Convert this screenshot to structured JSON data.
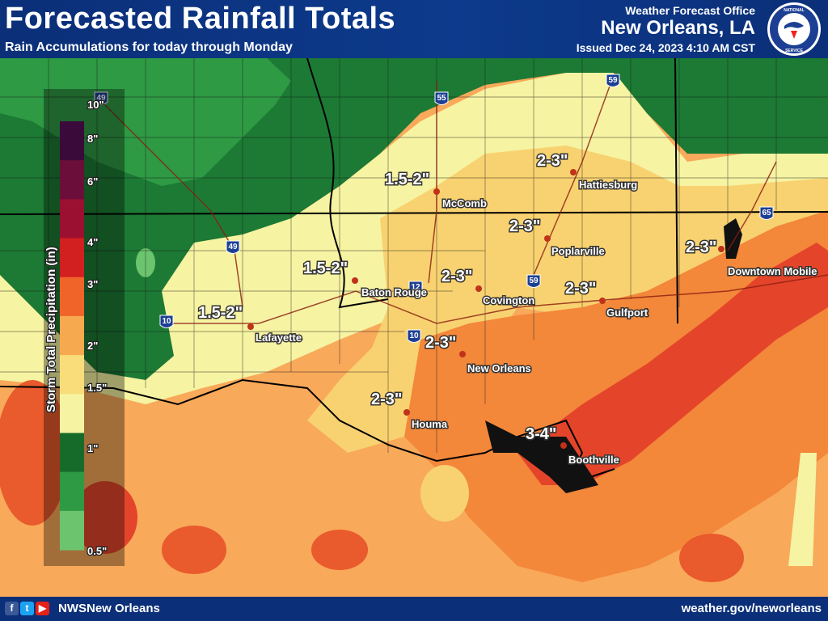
{
  "header": {
    "title": "Forecasted Rainfall Totals",
    "subtitle": "Rain Accumulations for today through Monday",
    "office_label": "Weather Forecast Office",
    "office_name": "New Orleans, LA",
    "issued": "Issued Dec 24, 2023 4:10 AM CST",
    "logo_text": "NATIONAL WEATHER SERVICE"
  },
  "legend": {
    "title": "Storm Total Precipitation (in)",
    "ticks": [
      "10\"",
      "8\"",
      "6\"",
      "4\"",
      "3\"",
      "2\"",
      "1.5\"",
      "1\"",
      "0.5\""
    ],
    "colors": [
      "#3a0a3a",
      "#6b0f3a",
      "#9b1030",
      "#d21f1f",
      "#f0642a",
      "#f7a94f",
      "#f8dd7a",
      "#f6f3a2",
      "#176b2a",
      "#2e9a44",
      "#6cc46f"
    ]
  },
  "cities": [
    {
      "name": "McComb"
    },
    {
      "name": "Hattiesburg"
    },
    {
      "name": "Poplarville"
    },
    {
      "name": "Baton Rouge"
    },
    {
      "name": "Covington"
    },
    {
      "name": "Gulfport"
    },
    {
      "name": "Downtown Mobile"
    },
    {
      "name": "Lafayette"
    },
    {
      "name": "New Orleans"
    },
    {
      "name": "Houma"
    },
    {
      "name": "Boothville"
    }
  ],
  "amounts": [
    "1.5-2\"",
    "2-3\"",
    "2-3\"",
    "1.5-2\"",
    "2-3\"",
    "2-3\"",
    "2-3\"",
    "1.5-2\"",
    "2-3\"",
    "2-3\"",
    "3-4\""
  ],
  "interstates": [
    "49",
    "55",
    "59",
    "65",
    "49",
    "12",
    "59",
    "10",
    "10"
  ],
  "footer": {
    "handle": "NWSNew Orleans",
    "website": "weather.gov/neworleans"
  }
}
